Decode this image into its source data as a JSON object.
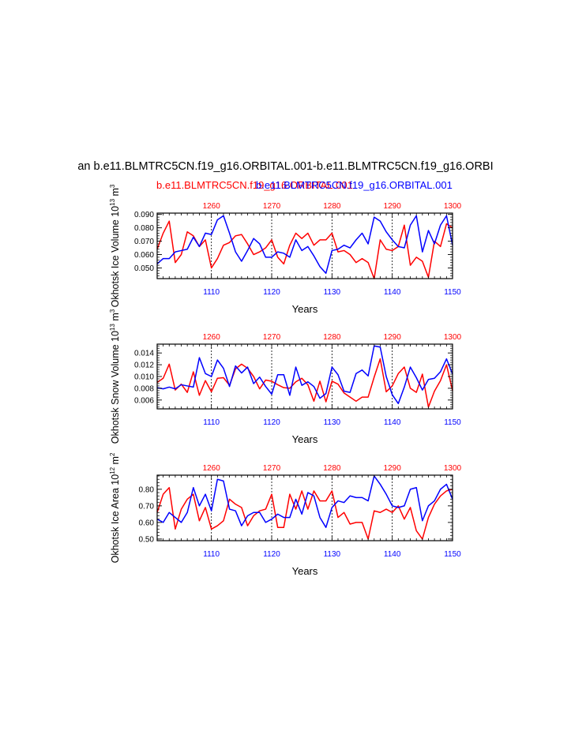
{
  "header": {
    "title": "an b.e11.BLMTRC5CN.f19_g16.ORBITAL.001-b.e11.BLMTRC5CN.f19_g16.ORBI",
    "subtitle_red": "b.e11.BLMTRC5CN.f19_g16.ORBITAL.001",
    "subtitle_blue": "b.e11.BLMTRC5CN.f19_g16.ORBITAL.001"
  },
  "colors": {
    "red": "#ff0000",
    "blue": "#0000ff",
    "axis": "#000000"
  },
  "chart_data": [
    {
      "type": "line",
      "ylabel": "Okhotsk Ice Volume 10",
      "ylabel_exp": "13",
      "ylabel_unit": " m",
      "ylabel_unit_exp": "3",
      "xlabel": "Years",
      "ylim": [
        0.042,
        0.091
      ],
      "yticks": [
        0.05,
        0.06,
        0.07,
        0.08,
        0.09
      ],
      "ytick_labels": [
        "0.050",
        "0.060",
        "0.070",
        "0.080",
        "0.090"
      ],
      "bottom_xlim": [
        1101,
        1150
      ],
      "bottom_xticks": [
        1110,
        1120,
        1130,
        1140,
        1150
      ],
      "bottom_xtick_labels": [
        "1110",
        "1120",
        "1130",
        "1140",
        "1150"
      ],
      "top_xticks": [
        1260,
        1270,
        1280,
        1290,
        1300
      ],
      "top_xtick_labels": [
        "1260",
        "1270",
        "1280",
        "1290",
        "1300"
      ],
      "series": [
        {
          "name": "red",
          "color": "#ff0000",
          "x_start": 1101,
          "values": [
            0.064,
            0.076,
            0.085,
            0.054,
            0.06,
            0.077,
            0.074,
            0.066,
            0.071,
            0.05,
            0.057,
            0.067,
            0.069,
            0.074,
            0.075,
            0.068,
            0.06,
            0.062,
            0.065,
            0.071,
            0.058,
            0.053,
            0.067,
            0.076,
            0.072,
            0.076,
            0.067,
            0.071,
            0.071,
            0.076,
            0.062,
            0.063,
            0.06,
            0.054,
            0.057,
            0.054,
            0.042,
            0.071,
            0.064,
            0.063,
            0.066,
            0.082,
            0.052,
            0.058,
            0.055,
            0.043,
            0.07,
            0.066,
            0.083,
            0.08
          ]
        },
        {
          "name": "blue",
          "color": "#0000ff",
          "x_start": 1101,
          "values": [
            0.053,
            0.057,
            0.057,
            0.062,
            0.063,
            0.064,
            0.073,
            0.066,
            0.076,
            0.075,
            0.086,
            0.089,
            0.076,
            0.062,
            0.055,
            0.063,
            0.072,
            0.068,
            0.058,
            0.058,
            0.062,
            0.061,
            0.058,
            0.071,
            0.063,
            0.066,
            0.059,
            0.051,
            0.046,
            0.063,
            0.064,
            0.067,
            0.065,
            0.071,
            0.076,
            0.068,
            0.088,
            0.085,
            0.077,
            0.071,
            0.066,
            0.065,
            0.082,
            0.089,
            0.062,
            0.078,
            0.068,
            0.082,
            0.089,
            0.067
          ]
        }
      ]
    },
    {
      "type": "line",
      "ylabel": "Okhotsk Snow Volume 10",
      "ylabel_exp": "13",
      "ylabel_unit": " m",
      "ylabel_unit_exp": "3",
      "xlabel": "Years",
      "ylim": [
        0.0045,
        0.0155
      ],
      "yticks": [
        0.006,
        0.008,
        0.01,
        0.012,
        0.014
      ],
      "ytick_labels": [
        "0.006",
        "0.008",
        "0.010",
        "0.012",
        "0.014"
      ],
      "bottom_xlim": [
        1101,
        1150
      ],
      "bottom_xticks": [
        1110,
        1120,
        1130,
        1140,
        1150
      ],
      "bottom_xtick_labels": [
        "1110",
        "1120",
        "1130",
        "1140",
        "1150"
      ],
      "top_xticks": [
        1260,
        1270,
        1280,
        1290,
        1300
      ],
      "top_xtick_labels": [
        "1260",
        "1270",
        "1280",
        "1290",
        "1300"
      ],
      "series": [
        {
          "name": "red",
          "color": "#ff0000",
          "x_start": 1101,
          "values": [
            0.009,
            0.0097,
            0.0121,
            0.0077,
            0.0087,
            0.0073,
            0.0108,
            0.0068,
            0.0093,
            0.0074,
            0.0097,
            0.0098,
            0.0085,
            0.0113,
            0.0121,
            0.0114,
            0.01,
            0.0079,
            0.0094,
            0.0092,
            0.0086,
            0.0081,
            0.008,
            0.0091,
            0.0097,
            0.0086,
            0.0058,
            0.0092,
            0.0057,
            0.0092,
            0.0087,
            0.0072,
            0.0065,
            0.0058,
            0.0065,
            0.0065,
            0.0099,
            0.013,
            0.0074,
            0.0084,
            0.0105,
            0.0116,
            0.008,
            0.0073,
            0.0104,
            0.0048,
            0.0075,
            0.0093,
            0.012,
            0.0076
          ]
        },
        {
          "name": "blue",
          "color": "#0000ff",
          "x_start": 1101,
          "values": [
            0.0081,
            0.0079,
            0.0082,
            0.0079,
            0.0086,
            0.0084,
            0.0082,
            0.0132,
            0.0105,
            0.01,
            0.0128,
            0.0114,
            0.0083,
            0.0118,
            0.0106,
            0.0116,
            0.0088,
            0.0099,
            0.0083,
            0.007,
            0.0103,
            0.0103,
            0.0068,
            0.0116,
            0.0085,
            0.0091,
            0.0083,
            0.0063,
            0.0071,
            0.0116,
            0.0103,
            0.0075,
            0.0073,
            0.0105,
            0.0111,
            0.0101,
            0.0152,
            0.015,
            0.01,
            0.0069,
            0.0054,
            0.0082,
            0.0116,
            0.0098,
            0.0077,
            0.0095,
            0.0097,
            0.0108,
            0.013,
            0.0104
          ]
        }
      ]
    },
    {
      "type": "line",
      "ylabel": "Okhotsk Ice Area 10",
      "ylabel_exp": "12",
      "ylabel_unit": " m",
      "ylabel_unit_exp": "2",
      "xlabel": "Years",
      "ylim": [
        0.49,
        0.885
      ],
      "yticks": [
        0.5,
        0.6,
        0.7,
        0.8
      ],
      "ytick_labels": [
        "0.50",
        "0.60",
        "0.70",
        "0.80"
      ],
      "bottom_xlim": [
        1101,
        1150
      ],
      "bottom_xticks": [
        1110,
        1120,
        1130,
        1140,
        1150
      ],
      "bottom_xtick_labels": [
        "1110",
        "1120",
        "1130",
        "1140",
        "1150"
      ],
      "top_xticks": [
        1260,
        1270,
        1280,
        1290,
        1300
      ],
      "top_xtick_labels": [
        "1260",
        "1270",
        "1280",
        "1290",
        "1300"
      ],
      "series": [
        {
          "name": "red",
          "color": "#ff0000",
          "x_start": 1101,
          "values": [
            0.66,
            0.77,
            0.81,
            0.56,
            0.68,
            0.74,
            0.77,
            0.61,
            0.69,
            0.56,
            0.58,
            0.61,
            0.74,
            0.71,
            0.69,
            0.58,
            0.64,
            0.67,
            0.68,
            0.77,
            0.57,
            0.57,
            0.77,
            0.68,
            0.79,
            0.68,
            0.79,
            0.73,
            0.73,
            0.79,
            0.63,
            0.66,
            0.59,
            0.6,
            0.6,
            0.5,
            0.67,
            0.66,
            0.68,
            0.66,
            0.7,
            0.62,
            0.69,
            0.55,
            0.5,
            0.63,
            0.71,
            0.76,
            0.79,
            0.8
          ]
        },
        {
          "name": "blue",
          "color": "#0000ff",
          "x_start": 1101,
          "values": [
            0.62,
            0.6,
            0.66,
            0.63,
            0.6,
            0.66,
            0.81,
            0.7,
            0.77,
            0.67,
            0.86,
            0.85,
            0.68,
            0.67,
            0.58,
            0.64,
            0.66,
            0.66,
            0.6,
            0.62,
            0.65,
            0.63,
            0.63,
            0.74,
            0.65,
            0.78,
            0.76,
            0.63,
            0.57,
            0.69,
            0.73,
            0.72,
            0.76,
            0.75,
            0.75,
            0.73,
            0.88,
            0.83,
            0.77,
            0.7,
            0.69,
            0.7,
            0.8,
            0.81,
            0.61,
            0.7,
            0.73,
            0.8,
            0.83,
            0.74
          ]
        }
      ]
    }
  ]
}
